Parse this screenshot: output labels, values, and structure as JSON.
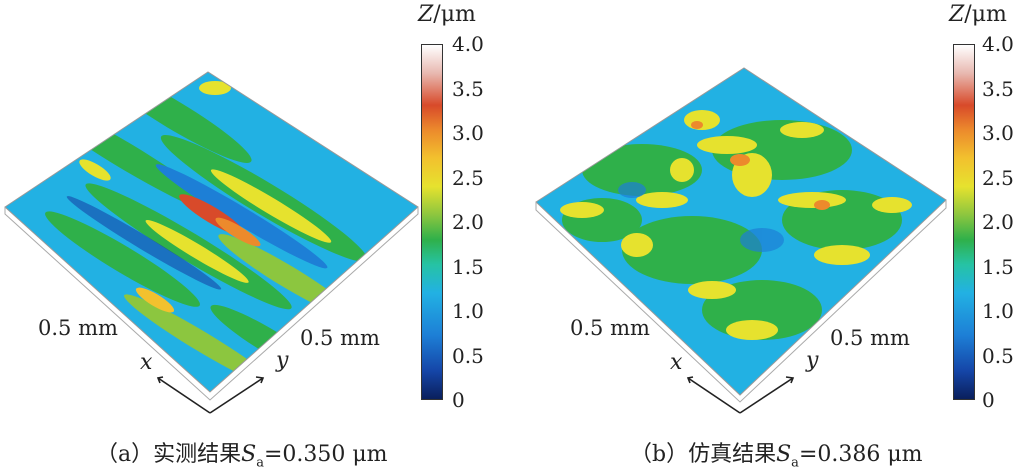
{
  "panels": [
    {
      "id": "a",
      "caption_prefix": "（a）实测结果",
      "caption_symbol": "S",
      "caption_sub": "a",
      "caption_value": "=0.350 μm",
      "x_extent_label": "0.5 mm",
      "y_extent_label": "0.5 mm",
      "x_var": "x",
      "y_var": "y",
      "colorbar_symbol": "Z",
      "colorbar_unit": "/μm",
      "colorbar_ticks": [
        "4.0",
        "3.5",
        "3.0",
        "2.5",
        "2.0",
        "1.5",
        "1.0",
        "0.5",
        "0"
      ]
    },
    {
      "id": "b",
      "caption_prefix": "（b）仿真结果",
      "caption_symbol": "S",
      "caption_sub": "a",
      "caption_value": "=0.386 μm",
      "x_extent_label": "0.5 mm",
      "y_extent_label": "0.5 mm",
      "x_var": "x",
      "y_var": "y",
      "colorbar_symbol": "Z",
      "colorbar_unit": "/μm",
      "colorbar_ticks": [
        "4.0",
        "3.5",
        "3.0",
        "2.5",
        "2.0",
        "1.5",
        "1.0",
        "0.5",
        "0"
      ]
    }
  ],
  "colors": {
    "low": "#1d7fd6",
    "mid_low": "#22b1e3",
    "mid": "#2fb04a",
    "mid_high": "#e6e22e",
    "high": "#d84a2a"
  }
}
